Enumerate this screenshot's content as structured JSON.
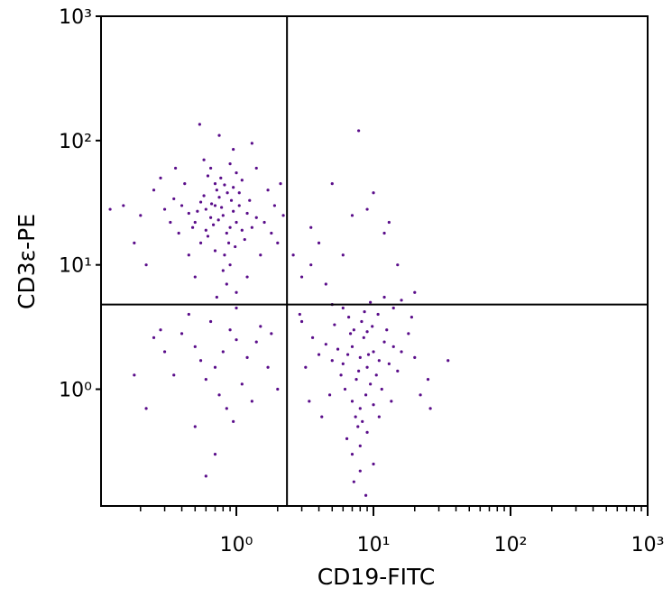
{
  "chart_data": {
    "type": "scatter",
    "x_label": "CD19-FITC",
    "y_label": "CD3ε-PE",
    "xlog": true,
    "ylog": true,
    "color": "#5a0d8a",
    "xlim": [
      0.103,
      1000
    ],
    "ylim": [
      0.115,
      1000
    ],
    "xticks": [
      {
        "value": 1,
        "label": "10⁰"
      },
      {
        "value": 10,
        "label": "10¹"
      },
      {
        "value": 100,
        "label": "10²"
      },
      {
        "value": 1000,
        "label": "10³"
      }
    ],
    "yticks": [
      {
        "value": 1,
        "label": "10⁰"
      },
      {
        "value": 10,
        "label": "10¹"
      },
      {
        "value": 100,
        "label": "10²"
      },
      {
        "value": 1000,
        "label": "10³"
      }
    ],
    "xminorticks": [
      0.2,
      0.3,
      0.4,
      0.5,
      0.6,
      0.7,
      0.8,
      0.9,
      2,
      3,
      4,
      5,
      6,
      7,
      8,
      9,
      20,
      30,
      40,
      50,
      60,
      70,
      80,
      90,
      200,
      300,
      400,
      500,
      600,
      700,
      800,
      900
    ],
    "gates": {
      "x": 2.34,
      "y": 4.8
    },
    "x": [
      0.8,
      0.7,
      0.9,
      0.6,
      1.0,
      0.75,
      0.85,
      0.65,
      0.95,
      1.1,
      0.55,
      0.72,
      0.88,
      0.68,
      1.2,
      0.5,
      0.78,
      0.92,
      0.62,
      1.05,
      0.45,
      0.82,
      0.7,
      1.3,
      0.58,
      0.98,
      0.74,
      0.66,
      1.15,
      0.4,
      0.86,
      0.6,
      1.4,
      0.52,
      0.9,
      0.77,
      1.25,
      0.48,
      0.95,
      0.35,
      1.6,
      0.3,
      0.7,
      1.8,
      0.25,
      0.55,
      1.0,
      0.42,
      1.5,
      0.8,
      0.65,
      1.9,
      0.2,
      0.38,
      1.2,
      0.58,
      2.0,
      0.9,
      0.28,
      1.7,
      0.15,
      0.45,
      1.1,
      0.33,
      0.85,
      2.2,
      0.54,
      0.75,
      1.3,
      0.18,
      0.5,
      1.0,
      0.72,
      1.4,
      0.36,
      0.12,
      0.22,
      2.1,
      0.95,
      0.62,
      0.82,
      1.05,
      8,
      7,
      9,
      6.5,
      10,
      7.5,
      8.5,
      6,
      9.5,
      11,
      7.2,
      8.8,
      5.5,
      12,
      7.8,
      6.8,
      9.2,
      10.5,
      5,
      8.2,
      13,
      6.2,
      7,
      9,
      4.5,
      11.5,
      8,
      14,
      6.6,
      10,
      5.8,
      8.6,
      4,
      15,
      7.4,
      9.8,
      3.6,
      12.5,
      8.3,
      6,
      16,
      7.7,
      10.8,
      3.2,
      18,
      9,
      5.2,
      8,
      11,
      4.8,
      20,
      7,
      13.5,
      3,
      9.5,
      6.4,
      25,
      8,
      10,
      7.2,
      8.8,
      5,
      14,
      19,
      22,
      35,
      12,
      16,
      4.2,
      26,
      3.4,
      0.8,
      0.7,
      1.0,
      0.6,
      0.9,
      1.2,
      0.5,
      0.75,
      1.1,
      0.65,
      0.4,
      1.4,
      0.85,
      0.55,
      1.3,
      0.35,
      1.5,
      0.45,
      0.95,
      0.3,
      1.7,
      0.22,
      0.18,
      0.28,
      0.7,
      0.6,
      1.8,
      2.0,
      0.5,
      1.0,
      0.25,
      7.8,
      5,
      10,
      3.5,
      4,
      7,
      12,
      2.6,
      3,
      15,
      9,
      6,
      20,
      4.5,
      2.9,
      3.5,
      13
    ],
    "values": [
      25,
      30,
      20,
      28,
      22,
      35,
      18,
      24,
      27,
      19,
      32,
      40,
      15,
      21,
      26,
      22,
      29,
      33,
      17,
      30,
      26,
      12,
      45,
      20,
      36,
      14,
      23,
      31,
      16,
      30,
      38,
      19,
      24,
      27,
      10,
      50,
      33,
      20,
      42,
      34,
      22,
      28,
      13,
      18,
      40,
      15,
      55,
      45,
      12,
      9,
      60,
      30,
      25,
      18,
      8,
      70,
      15,
      65,
      50,
      40,
      30,
      12,
      48,
      22,
      7,
      25,
      135,
      110,
      95,
      15,
      8,
      6,
      5.5,
      60,
      60,
      28,
      10,
      45,
      85,
      52,
      44,
      38,
      1.8,
      2.2,
      1.5,
      1.9,
      2.0,
      1.2,
      2.6,
      1.6,
      1.1,
      1.7,
      3.0,
      0.9,
      2.1,
      2.4,
      1.4,
      2.8,
      1.9,
      1.3,
      1.7,
      3.5,
      1.6,
      1.0,
      0.8,
      2.9,
      2.3,
      1.0,
      0.7,
      2.2,
      3.8,
      0.75,
      1.3,
      4.2,
      1.9,
      1.4,
      0.6,
      3.2,
      2.6,
      3.0,
      0.55,
      4.5,
      2.0,
      0.5,
      4.0,
      1.5,
      2.8,
      0.45,
      3.3,
      0.35,
      0.6,
      0.9,
      1.8,
      0.3,
      0.8,
      3.5,
      5.0,
      0.4,
      1.2,
      0.22,
      0.25,
      0.18,
      0.14,
      4.8,
      4.5,
      3.8,
      0.9,
      1.7,
      5.5,
      5.2,
      0.6,
      0.7,
      0.8,
      2,
      1.5,
      2.5,
      1.2,
      3,
      1.8,
      2.2,
      0.9,
      1.1,
      3.5,
      2.8,
      2.4,
      0.7,
      1.7,
      0.8,
      1.3,
      3.2,
      4,
      0.55,
      2.0,
      1.5,
      0.7,
      1.3,
      3.0,
      0.3,
      0.2,
      2.8,
      1.0,
      0.5,
      4.5,
      2.6,
      120,
      45,
      38,
      20,
      15,
      25,
      18,
      12,
      8,
      10,
      28,
      12,
      6,
      7,
      4,
      10,
      22
    ]
  }
}
